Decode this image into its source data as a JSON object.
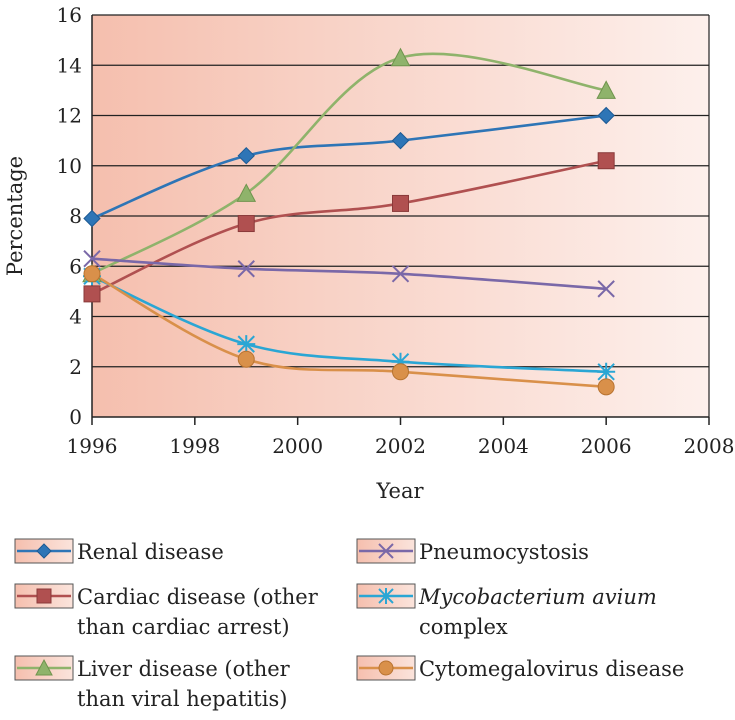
{
  "chart_data": {
    "type": "line",
    "xlabel": "Year",
    "ylabel": "Percentage",
    "xlim": [
      1996,
      2008
    ],
    "ylim": [
      0,
      16
    ],
    "xticks": [
      1996,
      1998,
      2000,
      2002,
      2004,
      2006,
      2008
    ],
    "yticks": [
      0,
      2,
      4,
      6,
      8,
      10,
      12,
      14,
      16
    ],
    "grid": "horizontal",
    "legend_position": "bottom",
    "series": [
      {
        "name": "Renal disease",
        "color": "#2e75b6",
        "marker": "diamond",
        "x": [
          1996,
          1999,
          2002,
          2006
        ],
        "y": [
          7.9,
          10.4,
          11.0,
          12.0
        ]
      },
      {
        "name": "Cardiac disease (other than cardiac arrest)",
        "legend_lines": [
          "Cardiac disease (other",
          "than cardiac arrest)"
        ],
        "color": "#b05050",
        "marker": "square",
        "x": [
          1996,
          1999,
          2002,
          2006
        ],
        "y": [
          4.9,
          7.7,
          8.5,
          10.2
        ]
      },
      {
        "name": "Liver disease (other than viral hepatitis)",
        "legend_lines": [
          "Liver disease (other",
          "than viral hepatitis)"
        ],
        "color": "#8fb36b",
        "marker": "triangle",
        "x": [
          1996,
          1999,
          2002,
          2006
        ],
        "y": [
          5.7,
          8.9,
          14.3,
          13.0
        ]
      },
      {
        "name": "Pneumocystosis",
        "color": "#7a68a8",
        "marker": "x",
        "x": [
          1996,
          1999,
          2002,
          2006
        ],
        "y": [
          6.3,
          5.9,
          5.7,
          5.1
        ]
      },
      {
        "name": "Mycobacterium avium complex",
        "legend_lines": [
          "Mycobacterium avium",
          "complex"
        ],
        "legend_italic_first": true,
        "color": "#2aa6d4",
        "marker": "star",
        "x": [
          1996,
          1999,
          2002,
          2006
        ],
        "y": [
          5.6,
          2.9,
          2.2,
          1.8
        ]
      },
      {
        "name": "Cytomegalovirus disease",
        "color": "#d9904a",
        "marker": "circle",
        "x": [
          1996,
          1999,
          2002,
          2006
        ],
        "y": [
          5.7,
          2.3,
          1.8,
          1.2
        ]
      }
    ]
  }
}
